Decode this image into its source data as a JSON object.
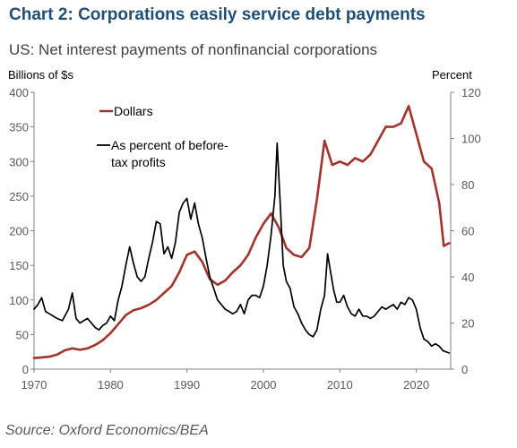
{
  "title": "Chart 2: Corporations easily service debt payments",
  "subtitle": "US: Net interest payments of nonfinancial corporations",
  "source": "Source: Oxford Economics/BEA",
  "colors": {
    "title": "#1f4e79",
    "dollars": "#a5322b",
    "percent": "#000000"
  },
  "chart_data": {
    "type": "line",
    "y_left_label": "Billions of $s",
    "y_right_label": "Percent",
    "ylim_left": [
      0,
      400
    ],
    "ylim_right": [
      0,
      120
    ],
    "xlim": [
      1970,
      2024.5
    ],
    "x_ticks": [
      1970,
      1980,
      1990,
      2000,
      2010,
      2020
    ],
    "y_left_ticks": [
      0,
      50,
      100,
      150,
      200,
      250,
      300,
      350,
      400
    ],
    "y_right_ticks": [
      0,
      20,
      40,
      60,
      80,
      100,
      120
    ],
    "grid": false,
    "legend": [
      "Dollars",
      "As percent of before-",
      "tax profits"
    ],
    "series": [
      {
        "name": "Dollars",
        "axis": "left",
        "points": [
          [
            1970,
            16
          ],
          [
            1971,
            17
          ],
          [
            1972,
            18
          ],
          [
            1973,
            21
          ],
          [
            1974,
            27
          ],
          [
            1975,
            30
          ],
          [
            1976,
            28
          ],
          [
            1977,
            30
          ],
          [
            1978,
            35
          ],
          [
            1979,
            42
          ],
          [
            1980,
            52
          ],
          [
            1981,
            65
          ],
          [
            1982,
            78
          ],
          [
            1983,
            85
          ],
          [
            1984,
            88
          ],
          [
            1985,
            93
          ],
          [
            1986,
            100
          ],
          [
            1987,
            110
          ],
          [
            1988,
            120
          ],
          [
            1989,
            140
          ],
          [
            1990,
            165
          ],
          [
            1991,
            170
          ],
          [
            1992,
            155
          ],
          [
            1993,
            130
          ],
          [
            1994,
            122
          ],
          [
            1995,
            128
          ],
          [
            1996,
            140
          ],
          [
            1997,
            150
          ],
          [
            1998,
            165
          ],
          [
            1999,
            190
          ],
          [
            2000,
            210
          ],
          [
            2001,
            225
          ],
          [
            2002,
            205
          ],
          [
            2003,
            175
          ],
          [
            2004,
            165
          ],
          [
            2005,
            162
          ],
          [
            2006,
            175
          ],
          [
            2007,
            245
          ],
          [
            2008,
            330
          ],
          [
            2009,
            295
          ],
          [
            2010,
            300
          ],
          [
            2011,
            295
          ],
          [
            2012,
            305
          ],
          [
            2013,
            300
          ],
          [
            2014,
            310
          ],
          [
            2015,
            330
          ],
          [
            2016,
            350
          ],
          [
            2017,
            350
          ],
          [
            2018,
            355
          ],
          [
            2019,
            380
          ],
          [
            2020,
            340
          ],
          [
            2021,
            300
          ],
          [
            2022,
            290
          ],
          [
            2023,
            240
          ],
          [
            2023.6,
            178
          ],
          [
            2024.3,
            182
          ]
        ]
      },
      {
        "name": "As percent of before-tax profits",
        "axis": "right",
        "points": [
          [
            1970,
            26
          ],
          [
            1970.5,
            28
          ],
          [
            1971,
            31
          ],
          [
            1971.5,
            25
          ],
          [
            1972,
            24
          ],
          [
            1973,
            22
          ],
          [
            1973.7,
            21
          ],
          [
            1974.5,
            26
          ],
          [
            1975,
            33
          ],
          [
            1975.5,
            22
          ],
          [
            1976,
            20
          ],
          [
            1976.5,
            21
          ],
          [
            1977,
            22
          ],
          [
            1977.5,
            20
          ],
          [
            1978,
            18
          ],
          [
            1978.5,
            17
          ],
          [
            1979,
            19
          ],
          [
            1979.5,
            20
          ],
          [
            1980,
            23
          ],
          [
            1980.5,
            21
          ],
          [
            1981,
            30
          ],
          [
            1981.5,
            36
          ],
          [
            1982,
            45
          ],
          [
            1982.5,
            53
          ],
          [
            1983,
            46
          ],
          [
            1983.5,
            40
          ],
          [
            1984,
            38
          ],
          [
            1984.5,
            40
          ],
          [
            1985,
            48
          ],
          [
            1985.5,
            55
          ],
          [
            1986,
            64
          ],
          [
            1986.5,
            63
          ],
          [
            1987,
            50
          ],
          [
            1987.5,
            53
          ],
          [
            1988,
            48
          ],
          [
            1988.5,
            55
          ],
          [
            1989,
            68
          ],
          [
            1989.5,
            72
          ],
          [
            1990,
            74
          ],
          [
            1990.5,
            65
          ],
          [
            1991,
            72
          ],
          [
            1991.5,
            63
          ],
          [
            1992,
            57
          ],
          [
            1992.5,
            48
          ],
          [
            1993,
            40
          ],
          [
            1993.5,
            35
          ],
          [
            1994,
            30
          ],
          [
            1994.5,
            28
          ],
          [
            1995,
            26
          ],
          [
            1995.5,
            25
          ],
          [
            1996,
            24
          ],
          [
            1996.5,
            25
          ],
          [
            1997,
            28
          ],
          [
            1997.5,
            24
          ],
          [
            1998,
            30
          ],
          [
            1998.5,
            32
          ],
          [
            1999,
            32
          ],
          [
            1999.5,
            31
          ],
          [
            2000,
            36
          ],
          [
            2000.5,
            45
          ],
          [
            2001,
            58
          ],
          [
            2001.5,
            75
          ],
          [
            2001.8,
            98
          ],
          [
            2002.2,
            72
          ],
          [
            2002.6,
            45
          ],
          [
            2003,
            38
          ],
          [
            2003.5,
            35
          ],
          [
            2004,
            27
          ],
          [
            2004.5,
            24
          ],
          [
            2005,
            20
          ],
          [
            2005.5,
            17
          ],
          [
            2006,
            15
          ],
          [
            2006.5,
            14
          ],
          [
            2007,
            17
          ],
          [
            2007.5,
            26
          ],
          [
            2008,
            32
          ],
          [
            2008.4,
            50
          ],
          [
            2008.8,
            42
          ],
          [
            2009.2,
            34
          ],
          [
            2009.6,
            29
          ],
          [
            2010,
            29
          ],
          [
            2010.5,
            32
          ],
          [
            2011,
            27
          ],
          [
            2011.5,
            24
          ],
          [
            2012,
            23
          ],
          [
            2012.5,
            26
          ],
          [
            2013,
            23
          ],
          [
            2013.5,
            23
          ],
          [
            2014,
            22
          ],
          [
            2014.5,
            23
          ],
          [
            2015,
            25
          ],
          [
            2015.5,
            27
          ],
          [
            2016,
            26
          ],
          [
            2016.5,
            27
          ],
          [
            2017,
            28
          ],
          [
            2017.5,
            26
          ],
          [
            2018,
            29
          ],
          [
            2018.5,
            28
          ],
          [
            2019,
            31
          ],
          [
            2019.5,
            30
          ],
          [
            2020,
            26
          ],
          [
            2020.5,
            18
          ],
          [
            2021,
            13
          ],
          [
            2021.5,
            12
          ],
          [
            2022,
            10
          ],
          [
            2022.5,
            11
          ],
          [
            2023,
            10
          ],
          [
            2023.5,
            8
          ],
          [
            2024.3,
            7
          ]
        ]
      }
    ]
  }
}
